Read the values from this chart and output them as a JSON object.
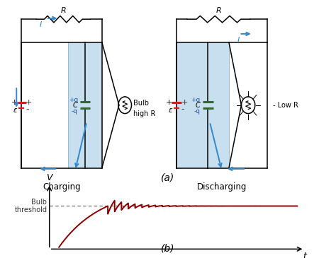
{
  "bg_color": "#ffffff",
  "lc": "#000000",
  "ac": "#3388cc",
  "red": "#cc2222",
  "green": "#336633",
  "blue_label": "#2255aa",
  "dark_red": "#8b0000",
  "cap_fill": "#c8dff0",
  "threshold": 0.68,
  "tau": 1.8,
  "osc_amp": 0.13,
  "osc_freq": 3.5,
  "osc_damp": 1.2,
  "charging_label": "Charging",
  "discharging_label": "Discharging",
  "label_a": "(a)",
  "label_b": "(b)",
  "V_label": "V",
  "t_label": "t",
  "R_label": "R",
  "I_label": "I",
  "C_label": "C",
  "plus_q": "+q",
  "minus_q": "-q",
  "bulb_high": "Bulb\nhigh R",
  "bulb_low": "Low R",
  "threshold_label": "Bulb\nthreshold",
  "emf": "ε"
}
